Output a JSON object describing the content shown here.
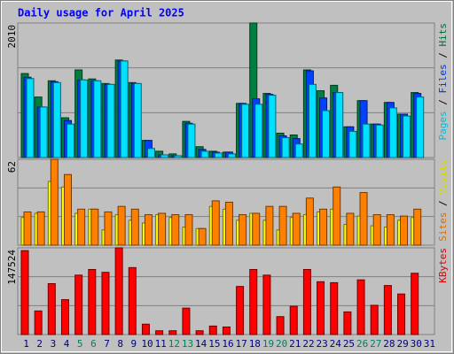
{
  "chart_data": [
    {
      "type": "bar",
      "title": "Daily usage for April 2025",
      "ylim": [
        0,
        2010
      ],
      "yticks": [
        2010
      ],
      "grid": true,
      "grid_divisions": 3,
      "legend_separator": " / ",
      "series": [
        {
          "name": "Hits",
          "color": "#008040",
          "values": [
            1255,
            904,
            1147,
            594,
            1309,
            1174,
            1106,
            1457,
            1120,
            256,
            94,
            54,
            540,
            162,
            94,
            81,
            809,
            2010,
            958,
            364,
            337,
            1309,
            998,
            1079,
            459,
            850,
            500,
            823,
            648,
            971,
            0
          ]
        },
        {
          "name": "Files",
          "color": "#0040ff",
          "values": [
            1200,
            755,
            1133,
            553,
            1160,
            1147,
            1093,
            1443,
            1106,
            256,
            40,
            27,
            513,
            121,
            81,
            81,
            809,
            877,
            944,
            324,
            283,
            1295,
            890,
            971,
            459,
            850,
            500,
            823,
            648,
            958,
            0
          ]
        },
        {
          "name": "Pages",
          "color": "#00e0ff",
          "values": [
            1180,
            755,
            1120,
            500,
            1160,
            1147,
            1093,
            1443,
            1106,
            135,
            40,
            27,
            500,
            94,
            67,
            54,
            796,
            796,
            931,
            297,
            202,
            1093,
            701,
            971,
            391,
            500,
            486,
            742,
            621,
            904,
            0
          ]
        }
      ]
    },
    {
      "type": "bar",
      "ylim": [
        0,
        62
      ],
      "yticks": [
        62
      ],
      "grid": true,
      "grid_divisions": 3,
      "legend_separator": " / ",
      "series": [
        {
          "name": "Visits",
          "color": "#ffff00",
          "values": [
            20,
            23,
            46,
            42,
            23,
            26,
            11,
            22,
            18,
            16,
            22,
            20,
            13,
            12,
            28,
            26,
            18,
            23,
            18,
            11,
            20,
            22,
            24,
            26,
            15,
            21,
            14,
            13,
            18,
            20,
            0
          ]
        },
        {
          "name": "Sites",
          "color": "#ff8000",
          "values": [
            24,
            24,
            62,
            51,
            26,
            26,
            24,
            28,
            26,
            22,
            23,
            22,
            22,
            12,
            32,
            31,
            22,
            23,
            28,
            28,
            23,
            34,
            26,
            42,
            23,
            38,
            22,
            22,
            21,
            26,
            0
          ]
        }
      ]
    },
    {
      "type": "bar",
      "ylim": [
        0,
        147524
      ],
      "yticks": [
        147524
      ],
      "grid": true,
      "grid_divisions": 3,
      "categories": [
        "1",
        "2",
        "3",
        "4",
        "5",
        "6",
        "7",
        "8",
        "9",
        "10",
        "11",
        "12",
        "13",
        "14",
        "15",
        "16",
        "17",
        "18",
        "19",
        "20",
        "21",
        "22",
        "23",
        "24",
        "25",
        "26",
        "27",
        "28",
        "29",
        "30",
        "31"
      ],
      "label_colors": [
        "#000080",
        "#000080",
        "#000080",
        "#000080",
        "#008060",
        "#008060",
        "#000080",
        "#000080",
        "#000080",
        "#000080",
        "#000080",
        "#008060",
        "#008060",
        "#000080",
        "#000080",
        "#000080",
        "#000080",
        "#000080",
        "#008060",
        "#008060",
        "#000080",
        "#000080",
        "#000080",
        "#000080",
        "#000080",
        "#008060",
        "#008060",
        "#000080",
        "#000080",
        "#000080",
        "#000080"
      ],
      "series": [
        {
          "name": "KBytes",
          "color": "#ff0000",
          "values": [
            142700,
            40090,
            86590,
            59330,
            101020,
            110640,
            105830,
            147524,
            113850,
            17640,
            6410,
            6410,
            44900,
            6410,
            14430,
            12830,
            81780,
            110640,
            101020,
            30470,
            48100,
            110640,
            89800,
            88190,
            38480,
            93000,
            49710,
            83380,
            68950,
            104230,
            0
          ]
        }
      ]
    }
  ]
}
